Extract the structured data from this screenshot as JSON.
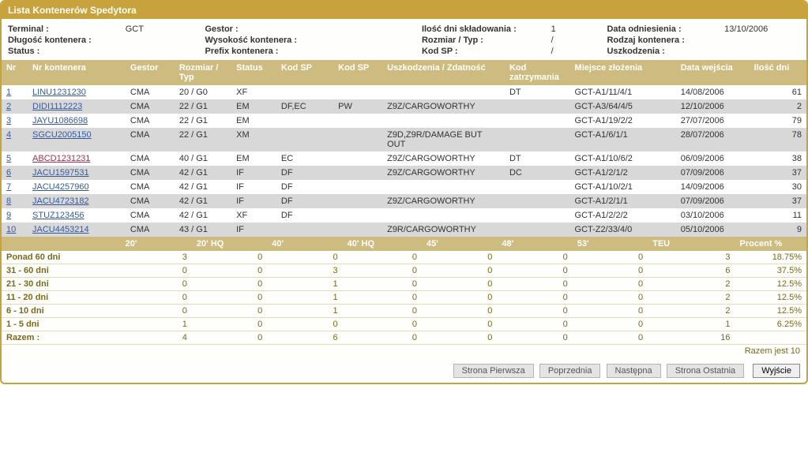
{
  "panel": {
    "title": "Lista Kontenerów Spedytora"
  },
  "meta": {
    "row1": {
      "terminal_label": "Terminal :",
      "terminal_value": "GCT",
      "gestor_label": "Gestor :",
      "gestor_value": "",
      "days_label": "Ilość dni składowania :",
      "days_value": "1",
      "refdate_label": "Data odniesienia :",
      "refdate_value": "13/10/2006"
    },
    "row2": {
      "len_label": "Długość kontenera :",
      "len_value": "",
      "height_label": "Wysokość kontenera :",
      "height_value": "",
      "size_label": "Rozmiar / Typ :",
      "size_value": "/",
      "kind_label": "Rodzaj kontenera :",
      "kind_value": ""
    },
    "row3": {
      "status_label": "Status :",
      "status_value": "",
      "prefix_label": "Prefix kontenera :",
      "prefix_value": "",
      "kodsp_label": "Kod SP :",
      "kodsp_value": "/",
      "damage_label": "Uszkodzenia :",
      "damage_value": ""
    }
  },
  "columns": {
    "nr": "Nr",
    "container": "Nr kontenera",
    "gestor": "Gestor",
    "size": "Rozmiar / Typ",
    "status": "Status",
    "kodsp1": "Kod SP",
    "kodsp2": "Kod SP",
    "damage": "Uszkodzenia / Zdatność",
    "hold": "Kod zatrzymania",
    "location": "Miejsce złożenia",
    "datein": "Data wejścia",
    "days": "Ilość dni"
  },
  "rows": [
    {
      "nr": "1",
      "container": "LINU1231230",
      "link": true,
      "gestor": "CMA",
      "size": "20 / G0",
      "status": "XF",
      "kodsp1": "",
      "kodsp2": "",
      "damage": "",
      "hold": "DT",
      "location": "GCT-A1/11/4/1",
      "datein": "14/08/2006",
      "days": "61",
      "alt": false
    },
    {
      "nr": "2",
      "container": "DIDI1112223",
      "link": true,
      "gestor": "CMA",
      "size": "22 / G1",
      "status": "EM",
      "kodsp1": "DF,EC",
      "kodsp2": "PW",
      "damage": "Z9Z/CARGOWORTHY",
      "hold": "",
      "location": "GCT-A3/64/4/5",
      "datein": "12/10/2006",
      "days": "2",
      "alt": true
    },
    {
      "nr": "3",
      "container": "JAYU1086698",
      "link": true,
      "gestor": "CMA",
      "size": "22 / G1",
      "status": "EM",
      "kodsp1": "",
      "kodsp2": "",
      "damage": "",
      "hold": "",
      "location": "GCT-A1/19/2/2",
      "datein": "27/07/2006",
      "days": "79",
      "alt": false
    },
    {
      "nr": "4",
      "container": "SGCU2005150",
      "link": true,
      "gestor": "CMA",
      "size": "22 / G1",
      "status": "XM",
      "kodsp1": "",
      "kodsp2": "",
      "damage": "Z9D,Z9R/DAMAGE BUT OUT",
      "hold": "",
      "location": "GCT-A1/6/1/1",
      "datein": "28/07/2006",
      "days": "78",
      "alt": true
    },
    {
      "nr": "5",
      "container": "ABCD1231231",
      "link": true,
      "red": true,
      "gestor": "CMA",
      "size": "40 / G1",
      "status": "EM",
      "kodsp1": "EC",
      "kodsp2": "",
      "damage": "Z9Z/CARGOWORTHY",
      "hold": "DT",
      "location": "GCT-A1/10/6/2",
      "datein": "06/09/2006",
      "days": "38",
      "alt": false
    },
    {
      "nr": "6",
      "container": "JACU1597531",
      "link": true,
      "gestor": "CMA",
      "size": "42 / G1",
      "status": "IF",
      "kodsp1": "DF",
      "kodsp2": "",
      "damage": "Z9Z/CARGOWORTHY",
      "hold": "DC",
      "location": "GCT-A1/2/1/2",
      "datein": "07/09/2006",
      "days": "37",
      "alt": true
    },
    {
      "nr": "7",
      "container": "JACU4257960",
      "link": true,
      "gestor": "CMA",
      "size": "42 / G1",
      "status": "IF",
      "kodsp1": "DF",
      "kodsp2": "",
      "damage": "",
      "hold": "",
      "location": "GCT-A1/10/2/1",
      "datein": "14/09/2006",
      "days": "30",
      "alt": false
    },
    {
      "nr": "8",
      "container": "JACU4723182",
      "link": true,
      "gestor": "CMA",
      "size": "42 / G1",
      "status": "IF",
      "kodsp1": "DF",
      "kodsp2": "",
      "damage": "Z9Z/CARGOWORTHY",
      "hold": "",
      "location": "GCT-A1/2/1/1",
      "datein": "07/09/2006",
      "days": "37",
      "alt": true
    },
    {
      "nr": "9",
      "container": "STUZ123456",
      "link": true,
      "gestor": "CMA",
      "size": "42 / G1",
      "status": "XF",
      "kodsp1": "DF",
      "kodsp2": "",
      "damage": "",
      "hold": "",
      "location": "GCT-A1/2/2/2",
      "datein": "03/10/2006",
      "days": "11",
      "alt": false
    },
    {
      "nr": "10",
      "container": "JACU4453214",
      "link": true,
      "gestor": "CMA",
      "size": "43 / G1",
      "status": "IF",
      "kodsp1": "",
      "kodsp2": "",
      "damage": "Z9R/CARGOWORTHY",
      "hold": "",
      "location": "GCT-Z2/33/4/0",
      "datein": "05/10/2006",
      "days": "9",
      "alt": true
    }
  ],
  "summary": {
    "headers": {
      "rowlbl": "",
      "c20": "20'",
      "c20hq": "20' HQ",
      "c40": "40'",
      "c40hq": "40' HQ",
      "c45": "45'",
      "c48": "48'",
      "c53": "53'",
      "teu": "TEU",
      "pct": "Procent %"
    },
    "rows": [
      {
        "label": "Ponad 60 dni",
        "c20": "3",
        "c20hq": "0",
        "c40": "0",
        "c40hq": "0",
        "c45": "0",
        "c48": "0",
        "c53": "0",
        "teu": "3",
        "pct": "18.75%"
      },
      {
        "label": "31 - 60 dni",
        "c20": "0",
        "c20hq": "0",
        "c40": "3",
        "c40hq": "0",
        "c45": "0",
        "c48": "0",
        "c53": "0",
        "teu": "6",
        "pct": "37.5%"
      },
      {
        "label": "21 - 30 dni",
        "c20": "0",
        "c20hq": "0",
        "c40": "1",
        "c40hq": "0",
        "c45": "0",
        "c48": "0",
        "c53": "0",
        "teu": "2",
        "pct": "12.5%"
      },
      {
        "label": "11 - 20 dni",
        "c20": "0",
        "c20hq": "0",
        "c40": "1",
        "c40hq": "0",
        "c45": "0",
        "c48": "0",
        "c53": "0",
        "teu": "2",
        "pct": "12.5%"
      },
      {
        "label": "6 - 10 dni",
        "c20": "0",
        "c20hq": "0",
        "c40": "1",
        "c40hq": "0",
        "c45": "0",
        "c48": "0",
        "c53": "0",
        "teu": "2",
        "pct": "12.5%"
      },
      {
        "label": "1 - 5 dni",
        "c20": "1",
        "c20hq": "0",
        "c40": "0",
        "c40hq": "0",
        "c45": "0",
        "c48": "0",
        "c53": "0",
        "teu": "1",
        "pct": "6.25%"
      },
      {
        "label": "Razem :",
        "c20": "4",
        "c20hq": "0",
        "c40": "6",
        "c40hq": "0",
        "c45": "0",
        "c48": "0",
        "c53": "0",
        "teu": "16",
        "pct": ""
      }
    ]
  },
  "footer": {
    "total": "Razem jest 10",
    "first": "Strona Pierwsza",
    "prev": "Poprzednia",
    "next": "Następna",
    "last": "Strona Ostatnia",
    "exit": "Wyjście"
  }
}
